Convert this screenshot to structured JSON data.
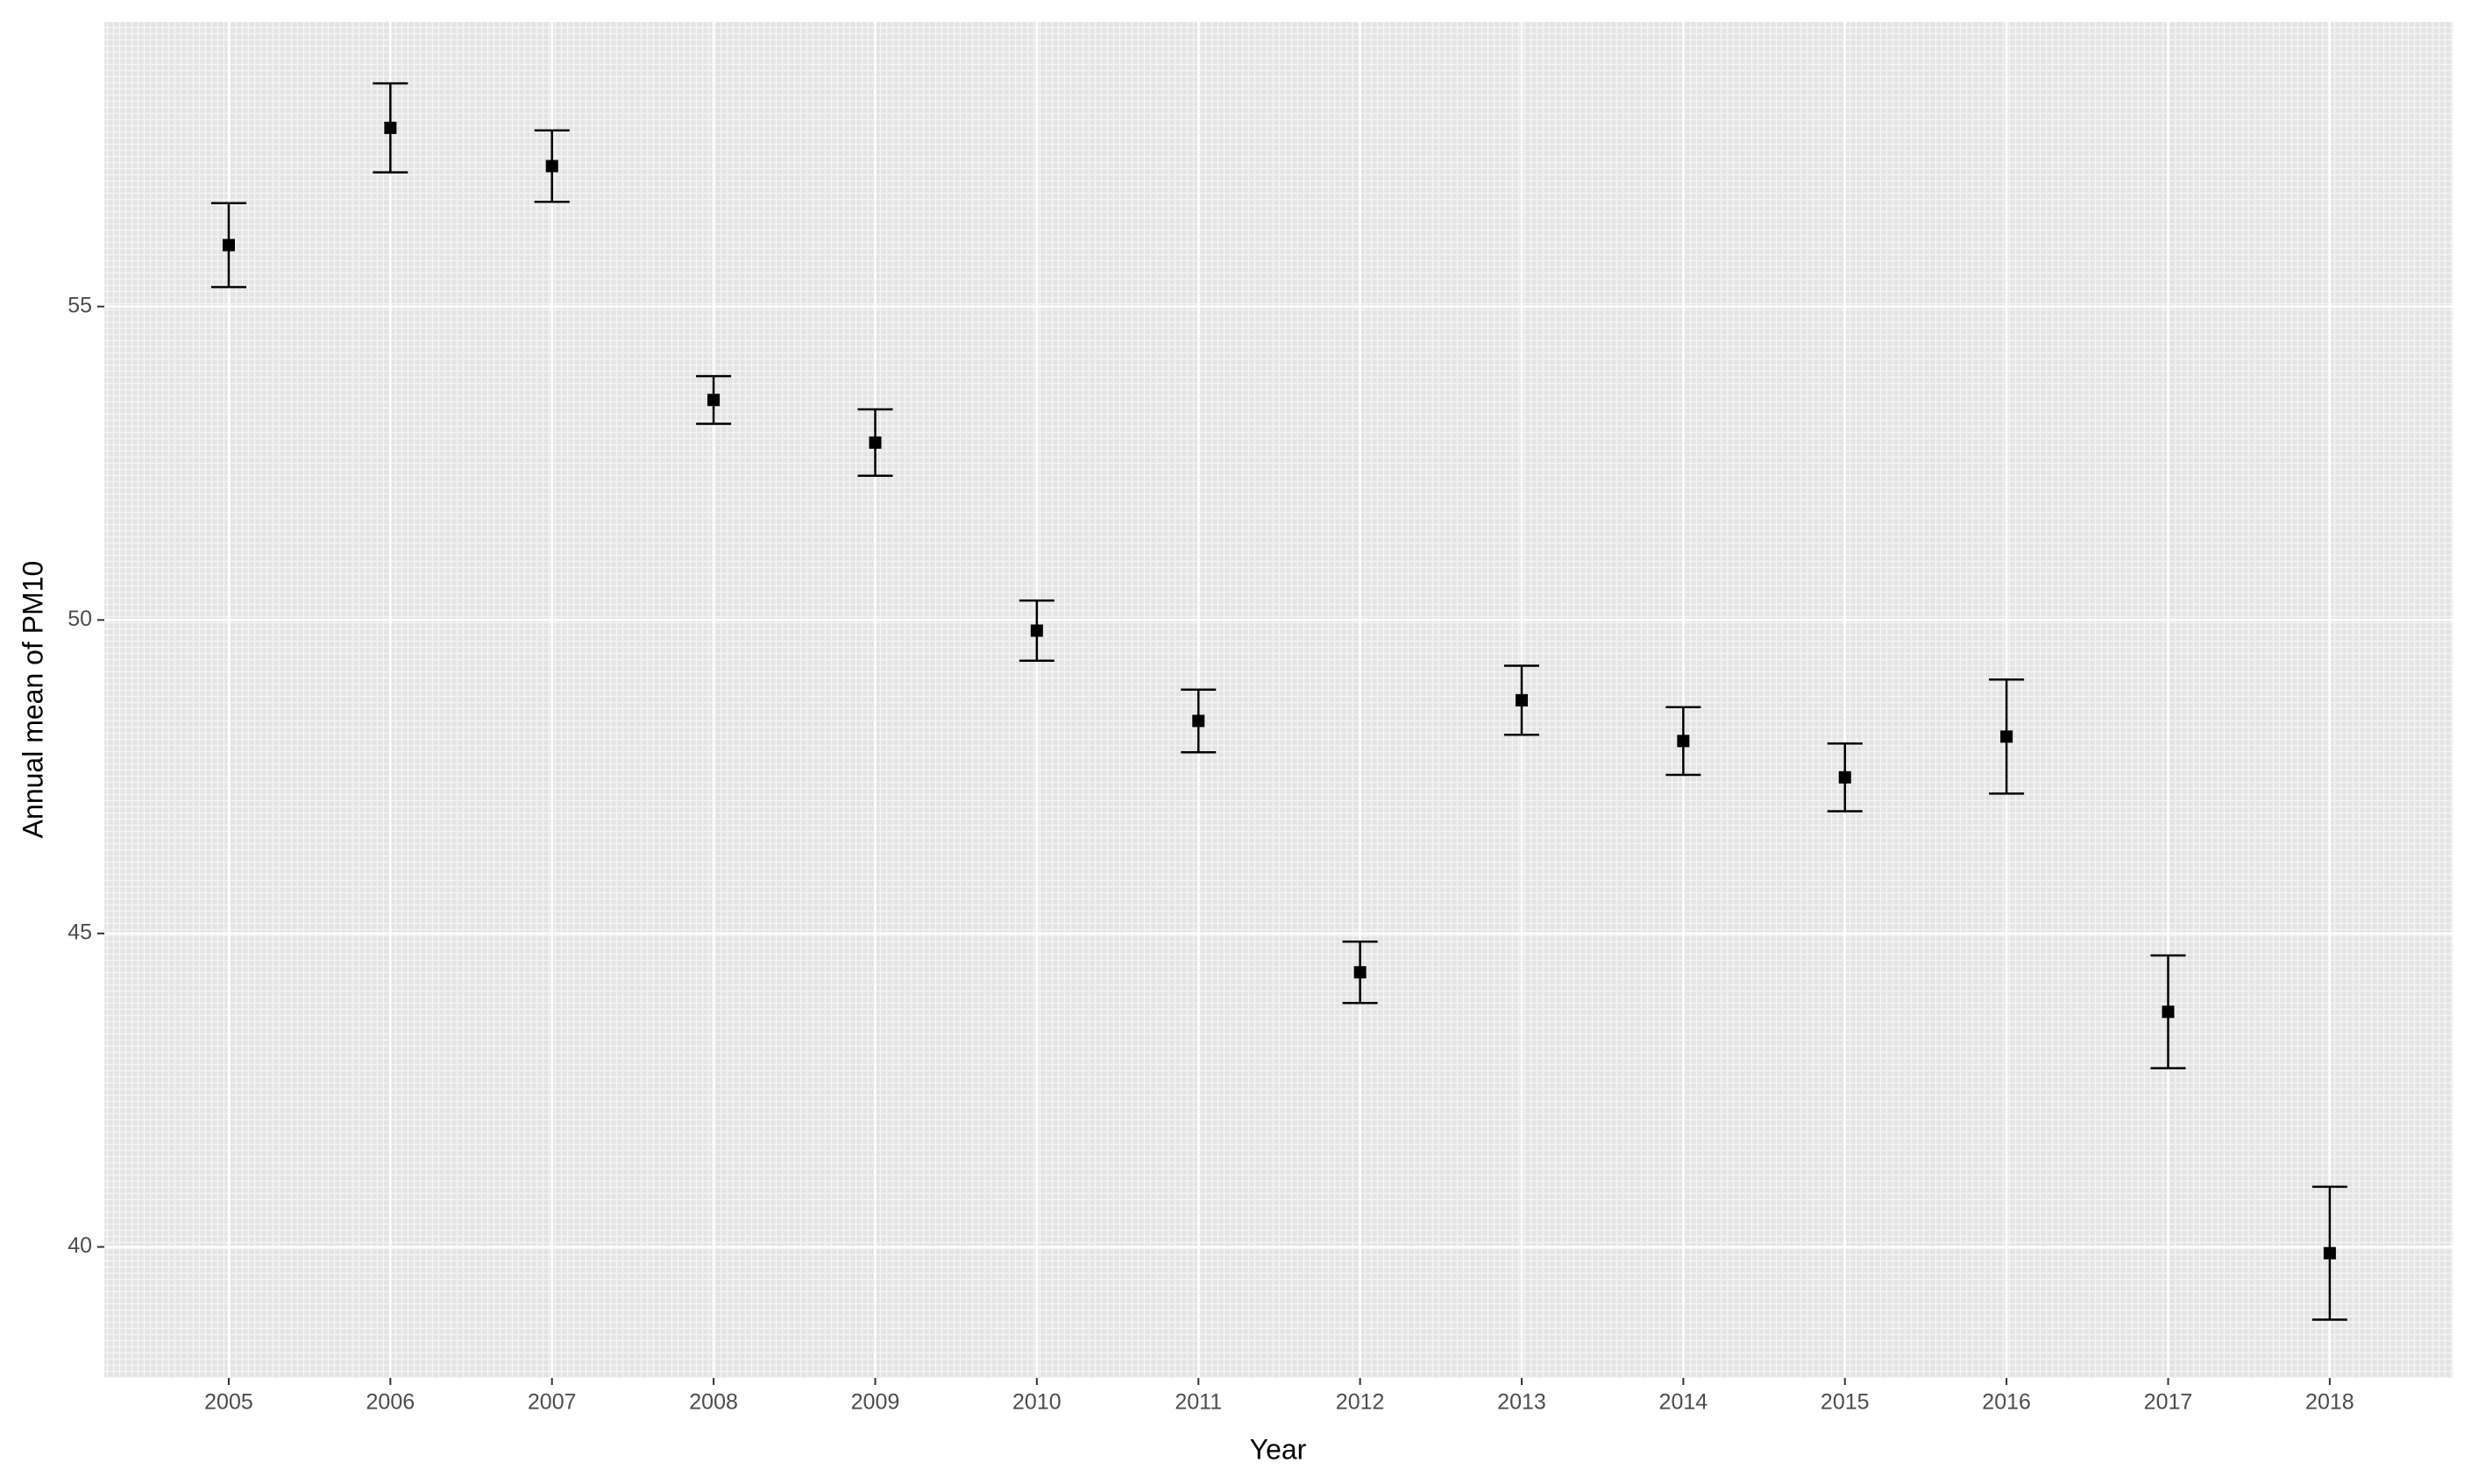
{
  "chart_data": {
    "type": "errorbar",
    "x_label": "Year",
    "y_label": "Annual mean of PM10",
    "x": [
      2005,
      2006,
      2007,
      2008,
      2009,
      2010,
      2011,
      2012,
      2013,
      2014,
      2015,
      2016,
      2017,
      2018
    ],
    "values": [
      55.98,
      57.85,
      57.24,
      53.51,
      52.83,
      49.83,
      48.39,
      44.38,
      48.72,
      48.07,
      47.49,
      48.14,
      43.75,
      39.9
    ],
    "errors": [
      0.67,
      0.71,
      0.57,
      0.38,
      0.53,
      0.48,
      0.5,
      0.49,
      0.55,
      0.54,
      0.54,
      0.91,
      0.9,
      1.06
    ],
    "color": "#000000",
    "xlim": [
      2004.23,
      2018.76
    ],
    "xticks": [
      2005,
      2006,
      2007,
      2008,
      2009,
      2010,
      2011,
      2012,
      2013,
      2014,
      2015,
      2016,
      2017,
      2018
    ],
    "ylim": [
      37.91,
      59.54
    ],
    "yticks": [
      40,
      45,
      50,
      55
    ],
    "grid": true
  }
}
